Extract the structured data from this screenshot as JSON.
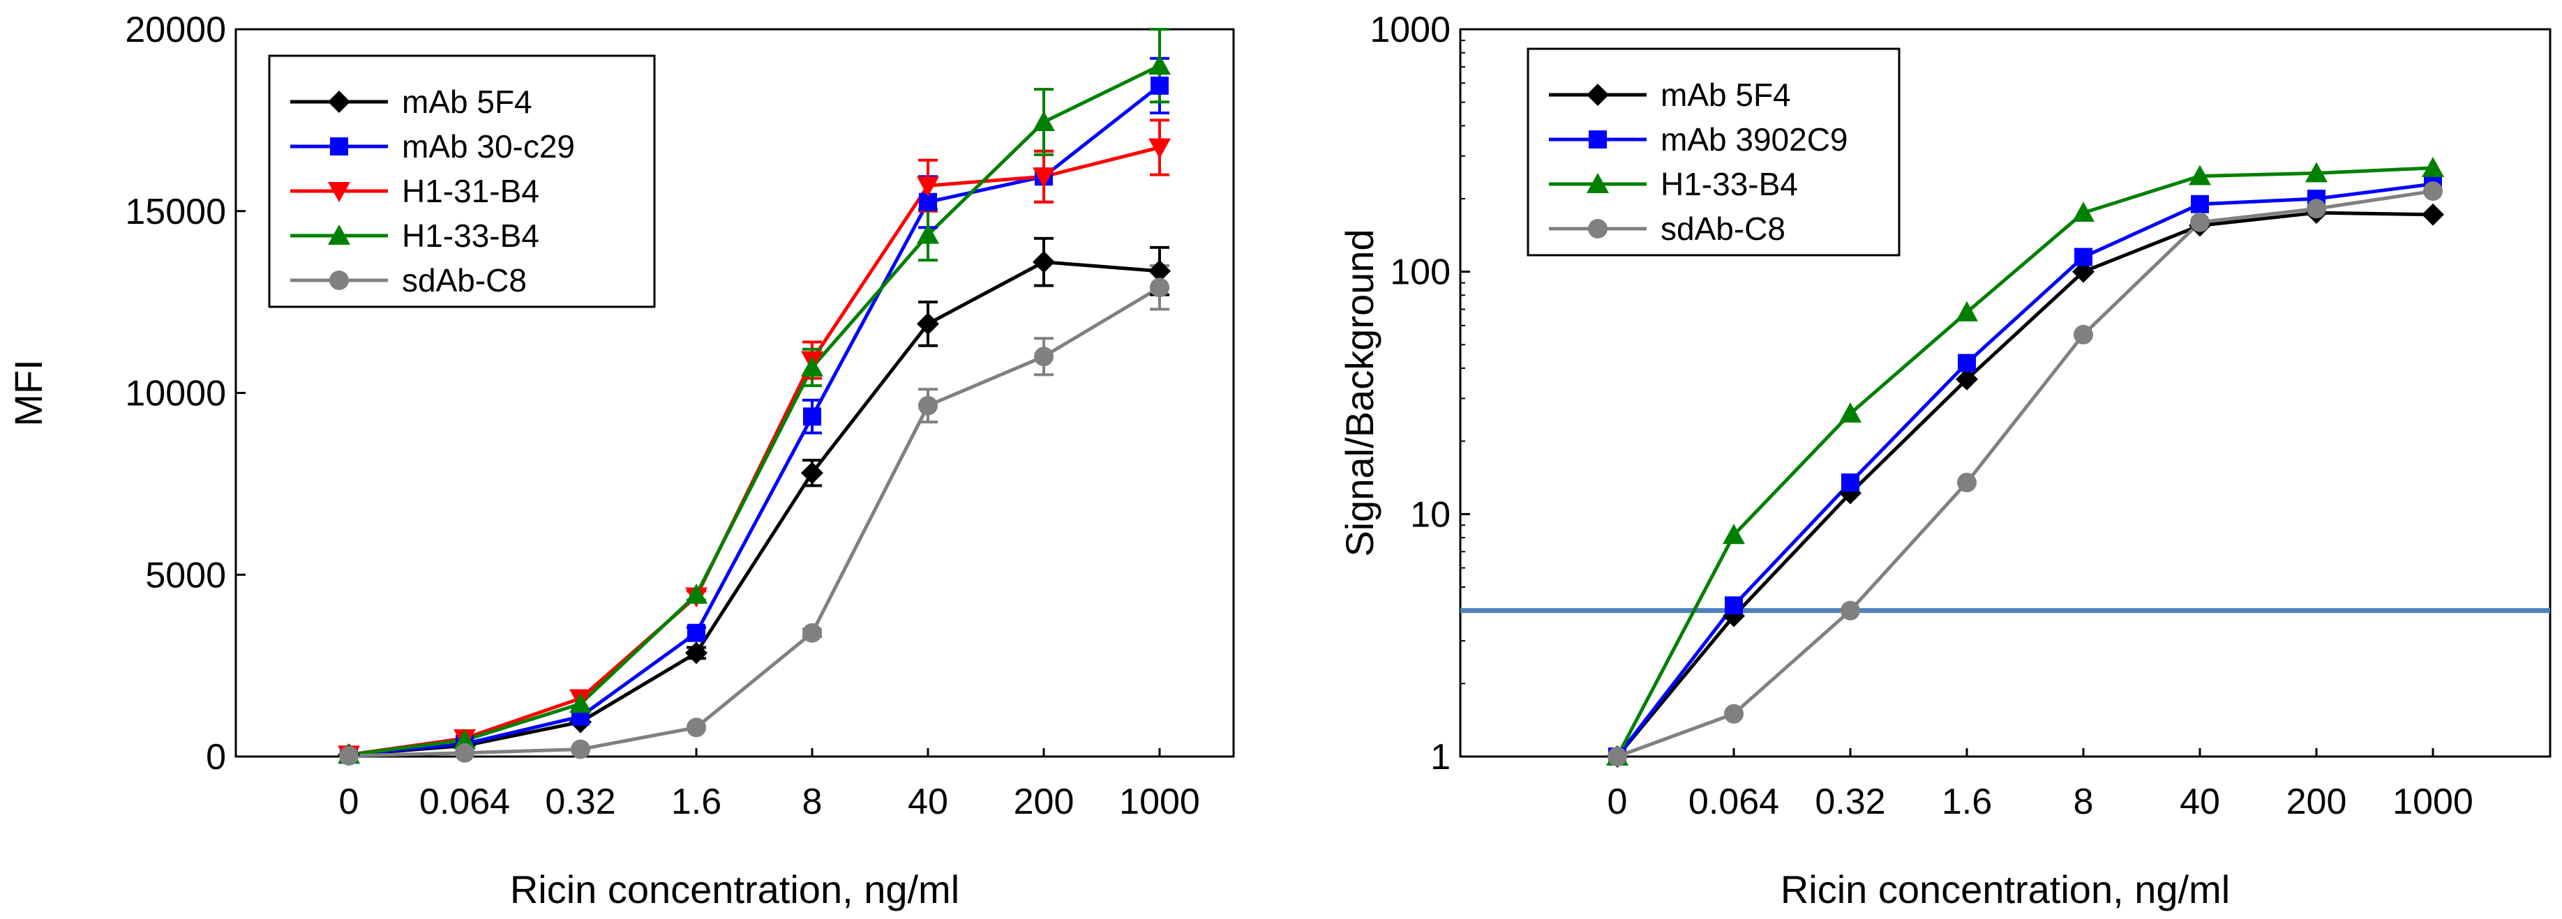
{
  "chart_data": [
    {
      "type": "line",
      "title": "",
      "xlabel": "Ricin concentration, ng/ml",
      "ylabel": "MFI",
      "yscale": "linear",
      "ylim": [
        0,
        20000
      ],
      "yticks": [
        0,
        5000,
        10000,
        15000,
        20000
      ],
      "categories": [
        "0",
        "0.064",
        "0.32",
        "1.6",
        "8",
        "40",
        "200",
        "1000"
      ],
      "legend_position": "top-left",
      "series": [
        {
          "name": "mAb 5F4",
          "color": "#000000",
          "marker": "diamond",
          "values": [
            50,
            300,
            950,
            2850,
            7800,
            11900,
            13600,
            13350
          ],
          "errors": [
            0,
            0,
            0,
            150,
            350,
            600,
            650,
            650
          ]
        },
        {
          "name": "mAb 30-c29",
          "color": "#0000ff",
          "marker": "square",
          "values": [
            50,
            350,
            1100,
            3400,
            9350,
            15250,
            15950,
            18450
          ],
          "errors": [
            0,
            0,
            0,
            150,
            450,
            700,
            700,
            750
          ]
        },
        {
          "name": "H1-31-B4",
          "color": "#ff0000",
          "marker": "triangle-down",
          "values": [
            50,
            500,
            1600,
            4400,
            10900,
            15700,
            15950,
            16750
          ],
          "errors": [
            0,
            0,
            0,
            150,
            500,
            700,
            700,
            750
          ]
        },
        {
          "name": "H1-33-B4",
          "color": "#008000",
          "marker": "triangle-up",
          "values": [
            50,
            450,
            1450,
            4450,
            10700,
            14350,
            17450,
            19000
          ],
          "errors": [
            0,
            0,
            0,
            150,
            500,
            700,
            900,
            1000
          ]
        },
        {
          "name": "sdAb-C8",
          "color": "#808080",
          "marker": "circle",
          "values": [
            20,
            100,
            200,
            800,
            3400,
            9650,
            11000,
            12900
          ],
          "errors": [
            0,
            0,
            0,
            0,
            100,
            450,
            500,
            600
          ]
        }
      ]
    },
    {
      "type": "line",
      "title": "",
      "xlabel": "Ricin concentration, ng/ml",
      "ylabel": "Signal/Background",
      "yscale": "log",
      "ylim": [
        1,
        1000
      ],
      "yticks": [
        1,
        10,
        100,
        1000
      ],
      "categories": [
        "0",
        "0.064",
        "0.32",
        "1.6",
        "8",
        "40",
        "200",
        "1000"
      ],
      "legend_position": "top-left",
      "threshold_line": {
        "value": 4,
        "color": "#4f81bd"
      },
      "series": [
        {
          "name": "mAb 5F4",
          "color": "#000000",
          "marker": "diamond",
          "values": [
            1,
            3.8,
            12.2,
            36,
            100,
            155,
            175,
            172
          ]
        },
        {
          "name": "mAb 3902C9",
          "color": "#0000ff",
          "marker": "square",
          "values": [
            1,
            4.2,
            13.5,
            42,
            115,
            190,
            200,
            230
          ]
        },
        {
          "name": "H1-33-B4",
          "color": "#008000",
          "marker": "triangle-up",
          "values": [
            1,
            8.2,
            26,
            68,
            175,
            248,
            255,
            268
          ]
        },
        {
          "name": "sdAb-C8",
          "color": "#808080",
          "marker": "circle",
          "values": [
            1,
            1.5,
            4,
            13.5,
            55,
            160,
            182,
            215
          ]
        }
      ]
    }
  ]
}
